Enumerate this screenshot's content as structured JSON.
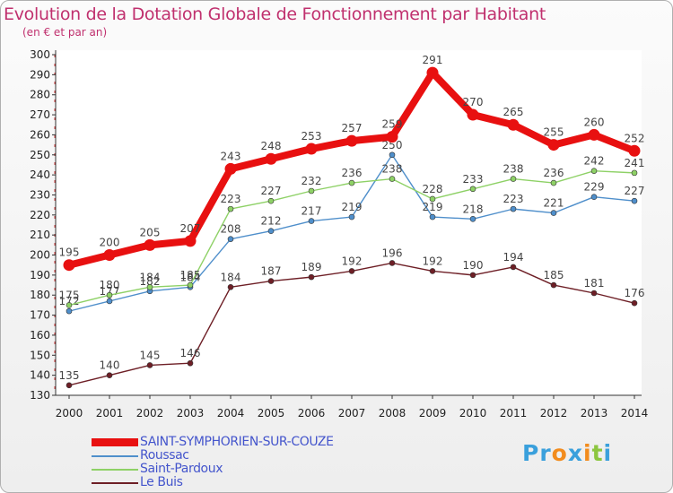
{
  "title": "Evolution de la Dotation Globale de Fonctionnement par Habitant",
  "subtitle": "(en € et par an)",
  "logo": {
    "parts": [
      "Pr",
      "o",
      "x",
      "i",
      "t",
      "i"
    ],
    "colors": [
      "#3aa0dc",
      "#f28c1e",
      "#3aa0dc",
      "#f28c1e",
      "#8cc640",
      "#3aa0dc"
    ]
  },
  "chart_data": {
    "type": "line",
    "x": [
      "2000",
      "2001",
      "2002",
      "2003",
      "2004",
      "2005",
      "2006",
      "2007",
      "2008",
      "2009",
      "2010",
      "2011",
      "2012",
      "2013",
      "2014"
    ],
    "ylim": [
      130,
      300
    ],
    "yticks": [
      130,
      140,
      150,
      160,
      170,
      180,
      190,
      200,
      210,
      220,
      230,
      240,
      250,
      260,
      270,
      280,
      290,
      300
    ],
    "grid": false,
    "legend_position": "bottom-left",
    "series": [
      {
        "name": "SAINT-SYMPHORIEN-SUR-COUZE",
        "color": "#e81010",
        "emphasis": true,
        "values": [
          195,
          200,
          205,
          207,
          243,
          248,
          253,
          257,
          259,
          291,
          270,
          265,
          255,
          260,
          252
        ]
      },
      {
        "name": "Roussac",
        "color": "#4f8fcb",
        "emphasis": false,
        "values": [
          172,
          177,
          182,
          184,
          208,
          212,
          217,
          219,
          250,
          219,
          218,
          223,
          221,
          229,
          227
        ]
      },
      {
        "name": "Saint-Pardoux",
        "color": "#8ed166",
        "emphasis": false,
        "values": [
          175,
          180,
          184,
          185,
          223,
          227,
          232,
          236,
          238,
          228,
          233,
          238,
          236,
          242,
          241
        ]
      },
      {
        "name": "Le Buis",
        "color": "#6e1f26",
        "emphasis": false,
        "values": [
          135,
          140,
          145,
          146,
          184,
          187,
          189,
          192,
          196,
          192,
          190,
          194,
          185,
          181,
          176
        ]
      }
    ]
  }
}
